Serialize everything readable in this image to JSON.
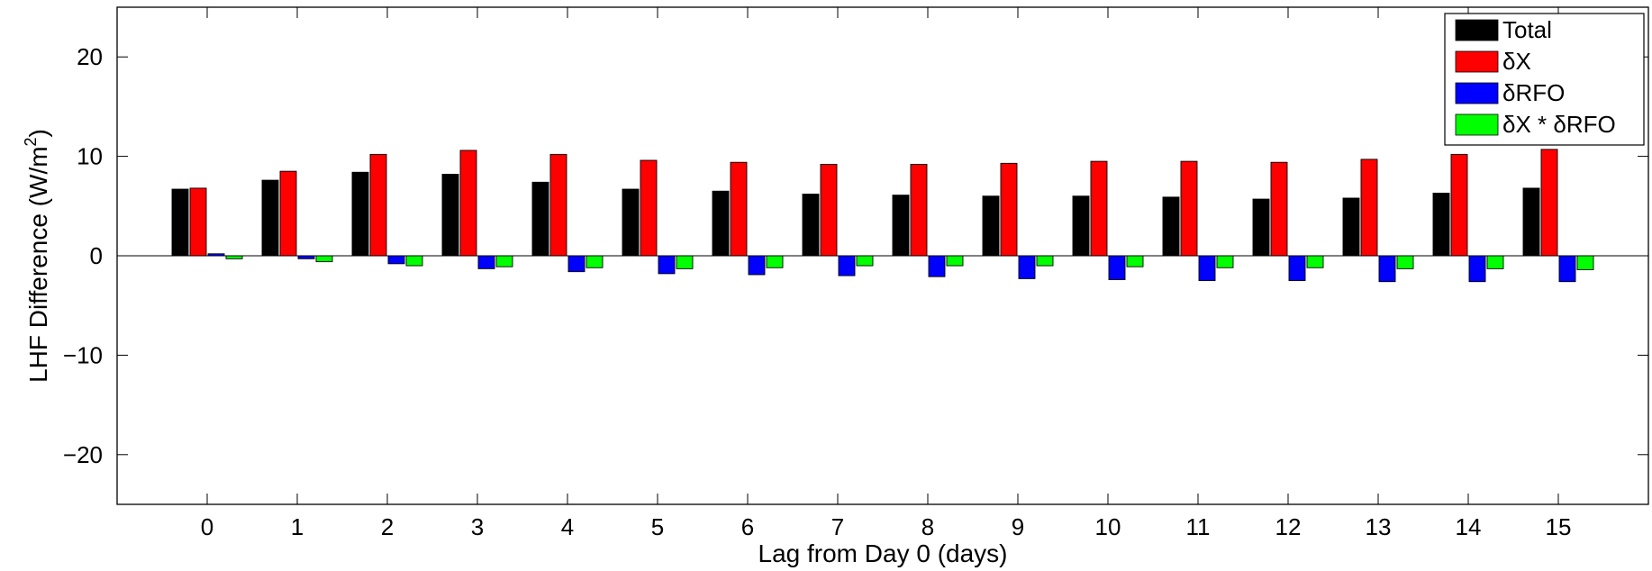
{
  "chart_data": {
    "type": "bar",
    "xlabel": "Lag from Day 0 (days)",
    "ylabel": "LHF Difference (W/m",
    "ylabel_sup": "2",
    "ylabel_tail": ")",
    "ylim": [
      -25,
      25
    ],
    "xlim": [
      -1,
      16
    ],
    "yticks": [
      -20,
      -10,
      0,
      10,
      20
    ],
    "ytick_labels": [
      "−20",
      "−10",
      "0",
      "10",
      "20"
    ],
    "categories": [
      "0",
      "1",
      "2",
      "3",
      "4",
      "5",
      "6",
      "7",
      "8",
      "9",
      "10",
      "11",
      "12",
      "13",
      "14",
      "15"
    ],
    "grid": false,
    "legend_position": "top-right",
    "series": [
      {
        "name": "Total",
        "color": "#000000",
        "values": [
          6.7,
          7.6,
          8.4,
          8.2,
          7.4,
          6.7,
          6.5,
          6.2,
          6.1,
          6.0,
          6.0,
          5.9,
          5.7,
          5.8,
          6.3,
          6.8
        ]
      },
      {
        "name": "δX",
        "color": "#ff0000",
        "values": [
          6.8,
          8.5,
          10.2,
          10.6,
          10.2,
          9.6,
          9.4,
          9.2,
          9.2,
          9.3,
          9.5,
          9.5,
          9.4,
          9.7,
          10.2,
          10.7
        ]
      },
      {
        "name": "δRFO",
        "color": "#0000ff",
        "values": [
          0.2,
          -0.3,
          -0.8,
          -1.3,
          -1.6,
          -1.8,
          -1.9,
          -2.0,
          -2.1,
          -2.3,
          -2.4,
          -2.5,
          -2.5,
          -2.6,
          -2.6,
          -2.6
        ]
      },
      {
        "name": "δX * δRFO",
        "color": "#00ff00",
        "values": [
          -0.3,
          -0.6,
          -1.0,
          -1.1,
          -1.2,
          -1.3,
          -1.2,
          -1.0,
          -1.0,
          -1.0,
          -1.1,
          -1.2,
          -1.2,
          -1.3,
          -1.3,
          -1.4
        ]
      }
    ]
  }
}
